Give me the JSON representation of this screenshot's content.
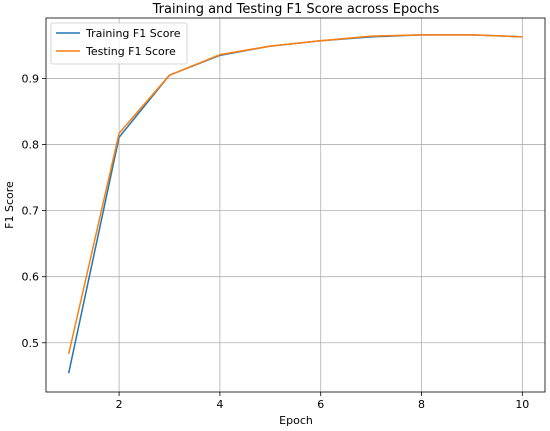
{
  "chart_data": {
    "type": "line",
    "title": "Training and Testing F1 Score across Epochs",
    "xlabel": "Epoch",
    "ylabel": "F1 Score",
    "x": [
      1,
      2,
      3,
      4,
      5,
      6,
      7,
      8,
      9,
      10
    ],
    "xlim": [
      0.55,
      10.45
    ],
    "ylim": [
      0.4255,
      0.9915
    ],
    "xticks": [
      2,
      4,
      6,
      8,
      10
    ],
    "yticks": [
      0.5,
      0.6,
      0.7,
      0.8,
      0.9
    ],
    "xtick_labels": [
      "2",
      "4",
      "6",
      "8",
      "10"
    ],
    "ytick_labels": [
      "0.5",
      "0.6",
      "0.7",
      "0.8",
      "0.9"
    ],
    "grid": true,
    "legend_position": "upper-left",
    "series": [
      {
        "name": "Training F1 Score",
        "color": "#1f77b4",
        "values": [
          0.454,
          0.811,
          0.905,
          0.935,
          0.949,
          0.957,
          0.963,
          0.966,
          0.966,
          0.963
        ]
      },
      {
        "name": "Testing F1 Score",
        "color": "#ff7f0e",
        "values": [
          0.483,
          0.817,
          0.905,
          0.936,
          0.949,
          0.957,
          0.964,
          0.966,
          0.966,
          0.963
        ]
      }
    ]
  }
}
